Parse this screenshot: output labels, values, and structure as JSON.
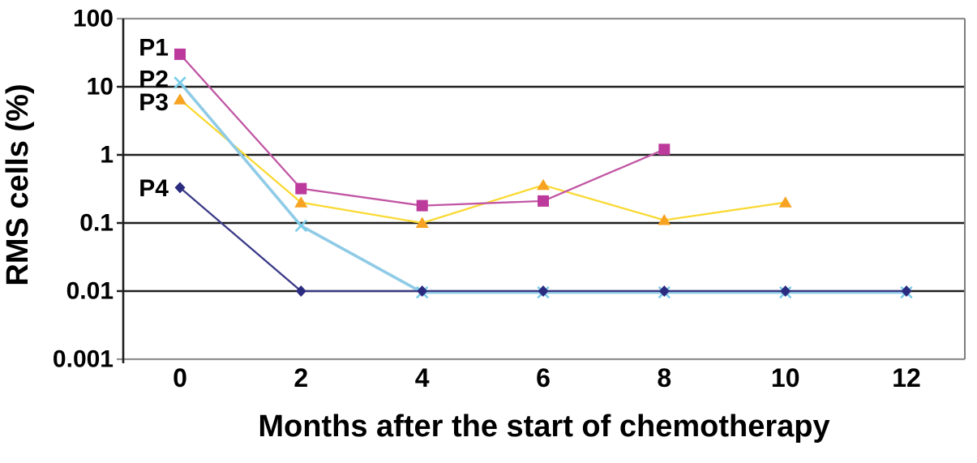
{
  "chart_data": {
    "type": "line",
    "title": "",
    "xlabel": "Months after the start of chemotherapy",
    "ylabel": "RMS cells (%)",
    "y_scale": "log",
    "ylim": [
      0.001,
      100
    ],
    "xlim": [
      0,
      12
    ],
    "x_ticks": [
      0,
      2,
      4,
      6,
      8,
      10,
      12
    ],
    "y_ticks": [
      "100",
      "10",
      "1",
      "0.1",
      "0.01",
      "0.001"
    ],
    "grid": "horizontal-black-decade-lines",
    "legend_position": "inline-left-of-first-points",
    "series": [
      {
        "name": "P1",
        "marker": "square",
        "color": "#BC3A9C",
        "line_color": "#C156A4",
        "x": [
          0,
          2,
          4,
          6,
          8
        ],
        "values": [
          30,
          0.32,
          0.18,
          0.21,
          1.2
        ]
      },
      {
        "name": "P2",
        "marker": "x",
        "color": "#79CCE9",
        "line_color": "#8FCBE6",
        "x": [
          0,
          2,
          4,
          6,
          8,
          10,
          12
        ],
        "values": [
          12,
          0.095,
          0.01,
          0.01,
          0.01,
          0.01,
          0.01
        ]
      },
      {
        "name": "P3",
        "marker": "triangle",
        "color": "#F7A321",
        "line_color": "#FAD933",
        "x": [
          0,
          2,
          4,
          6,
          8,
          10
        ],
        "values": [
          6.5,
          0.2,
          0.1,
          0.36,
          0.11,
          0.2
        ]
      },
      {
        "name": "P4",
        "marker": "diamond",
        "color": "#2B2B80",
        "line_color": "#3A3A88",
        "x": [
          0,
          2,
          4,
          6,
          8,
          10,
          12
        ],
        "values": [
          0.33,
          0.01,
          0.01,
          0.01,
          0.01,
          0.01,
          0.01
        ]
      }
    ]
  }
}
